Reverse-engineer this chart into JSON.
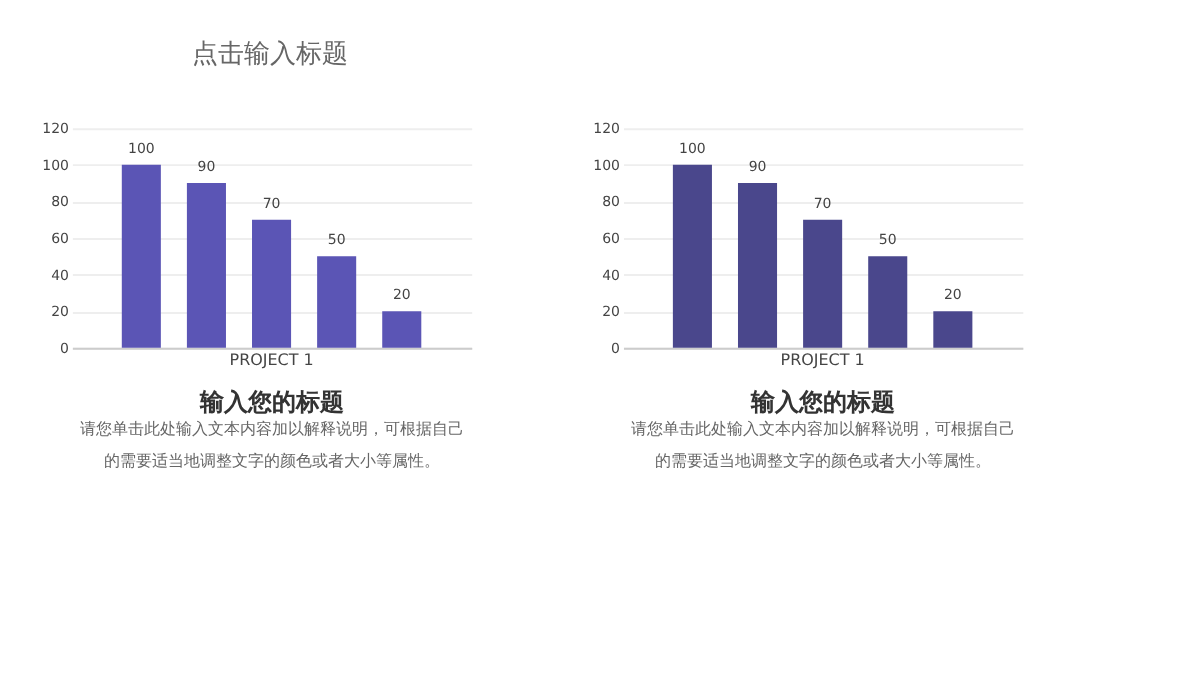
{
  "chart_data": [
    {
      "type": "other",
      "title": "点击输入标题"
    },
    {
      "type": "bar",
      "title": "输入您的标题",
      "annotations": [
        "请您单击此处输入文本内容加以解释说明，可根据自己的需要适当地调整文字的颜色或者大小等属性。"
      ],
      "categories": [
        "PROJECT 1"
      ],
      "series": [
        {
          "color": "#5b55b5",
          "values": [
            100
          ]
        },
        {
          "color": "#5b55b5",
          "values": [
            90
          ]
        },
        {
          "color": "#5b55b5",
          "values": [
            70
          ]
        },
        {
          "color": "#5b55b5",
          "values": [
            50
          ]
        },
        {
          "color": "#5b55b5",
          "values": [
            20
          ]
        }
      ],
      "ylim": [
        0,
        120
      ],
      "yticks": [
        0,
        20,
        40,
        60,
        80,
        100,
        120
      ],
      "grid": "y",
      "data_labels": true,
      "legend": false
    },
    {
      "type": "bar",
      "title": "输入您的标题",
      "annotations": [
        "请您单击此处输入文本内容加以解释说明，可根据自己的需要适当地调整文字的颜色或者大小等属性。"
      ],
      "categories": [
        "PROJECT 1"
      ],
      "series": [
        {
          "color": "#4a478c",
          "values": [
            100
          ]
        },
        {
          "color": "#4a478c",
          "values": [
            90
          ]
        },
        {
          "color": "#4a478c",
          "values": [
            70
          ]
        },
        {
          "color": "#4a478c",
          "values": [
            50
          ]
        },
        {
          "color": "#4a478c",
          "values": [
            20
          ]
        }
      ],
      "ylim": [
        0,
        120
      ],
      "yticks": [
        0,
        20,
        40,
        60,
        80,
        100,
        120
      ],
      "grid": "y",
      "data_labels": true,
      "legend": false
    }
  ]
}
